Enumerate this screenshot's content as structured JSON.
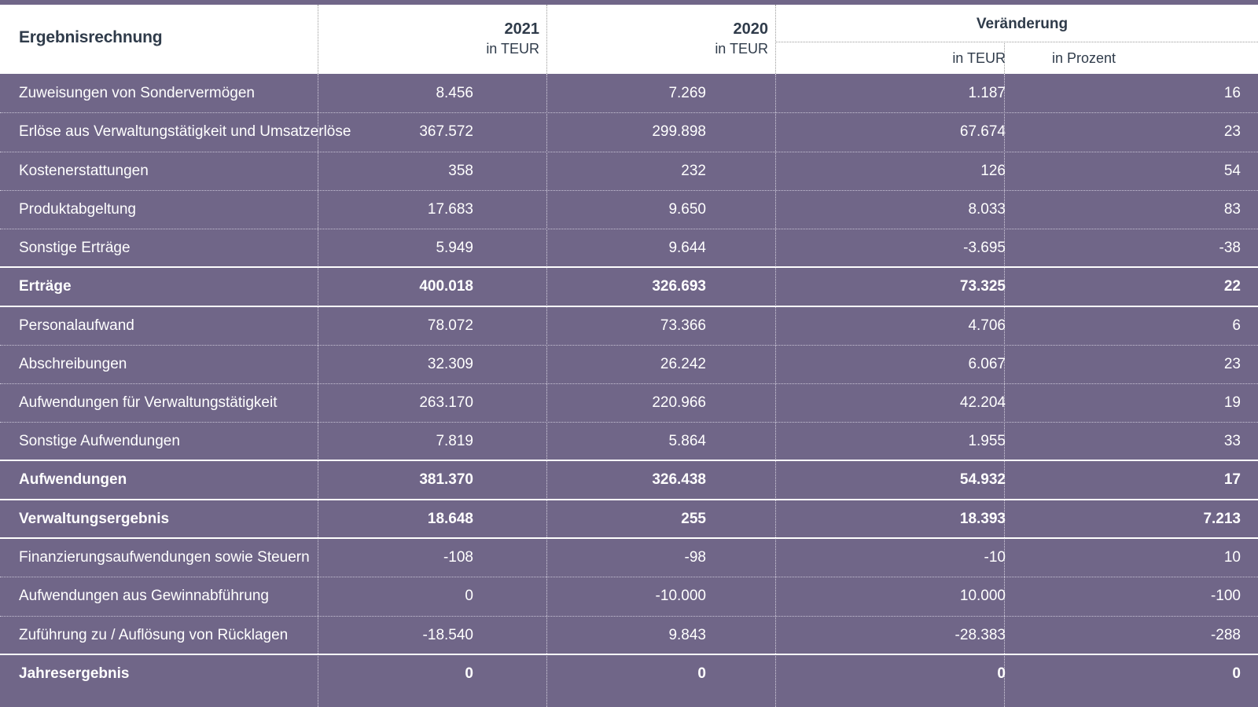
{
  "header": {
    "title": "Ergebnisrechnung",
    "col_2021_year": "2021",
    "col_2021_unit": "in TEUR",
    "col_2020_year": "2020",
    "col_2020_unit": "in TEUR",
    "change_label": "Veränderung",
    "change_teur": "in TEUR",
    "change_pct": "in Prozent"
  },
  "colors": {
    "row_bg": "#706688",
    "header_text": "#2f3b4a",
    "row_text": "#ffffff"
  },
  "rows": [
    {
      "label": "Zuweisungen von Sondervermögen",
      "v2021": "8.456",
      "v2020": "7.269",
      "teur": "1.187",
      "pct": "16",
      "bold": false
    },
    {
      "label": "Erlöse aus Verwaltungstätigkeit und Umsatzerlöse",
      "v2021": "367.572",
      "v2020": "299.898",
      "teur": "67.674",
      "pct": "23",
      "bold": false
    },
    {
      "label": "Kostenerstattungen",
      "v2021": "358",
      "v2020": "232",
      "teur": "126",
      "pct": "54",
      "bold": false
    },
    {
      "label": "Produktabgeltung",
      "v2021": "17.683",
      "v2020": "9.650",
      "teur": "8.033",
      "pct": "83",
      "bold": false
    },
    {
      "label": "Sonstige Erträge",
      "v2021": "5.949",
      "v2020": "9.644",
      "teur": "-3.695",
      "pct": "-38",
      "bold": false
    },
    {
      "label": "Erträge",
      "v2021": "400.018",
      "v2020": "326.693",
      "teur": "73.325",
      "pct": "22",
      "bold": true
    },
    {
      "label": "Personalaufwand",
      "v2021": "78.072",
      "v2020": "73.366",
      "teur": "4.706",
      "pct": "6",
      "bold": false
    },
    {
      "label": "Abschreibungen",
      "v2021": "32.309",
      "v2020": "26.242",
      "teur": "6.067",
      "pct": "23",
      "bold": false
    },
    {
      "label": "Aufwendungen für Verwaltungstätigkeit",
      "v2021": "263.170",
      "v2020": "220.966",
      "teur": "42.204",
      "pct": "19",
      "bold": false
    },
    {
      "label": "Sonstige Aufwendungen",
      "v2021": "7.819",
      "v2020": "5.864",
      "teur": "1.955",
      "pct": "33",
      "bold": false
    },
    {
      "label": "Aufwendungen",
      "v2021": "381.370",
      "v2020": "326.438",
      "teur": "54.932",
      "pct": "17",
      "bold": true
    },
    {
      "label": "Verwaltungsergebnis",
      "v2021": "18.648",
      "v2020": "255",
      "teur": "18.393",
      "pct": "7.213",
      "bold": true
    },
    {
      "label": "Finanzierungsaufwendungen sowie Steuern",
      "v2021": "-108",
      "v2020": "-98",
      "teur": "-10",
      "pct": "10",
      "bold": false
    },
    {
      "label": "Aufwendungen aus Gewinnabführung",
      "v2021": "0",
      "v2020": "-10.000",
      "teur": "10.000",
      "pct": "-100",
      "bold": false
    },
    {
      "label": "Zuführung zu / Auflösung von Rücklagen",
      "v2021": "-18.540",
      "v2020": "9.843",
      "teur": "-28.383",
      "pct": "-288",
      "bold": false
    },
    {
      "label": "Jahresergebnis",
      "v2021": "0",
      "v2020": "0",
      "teur": "0",
      "pct": "0",
      "bold": true
    }
  ]
}
